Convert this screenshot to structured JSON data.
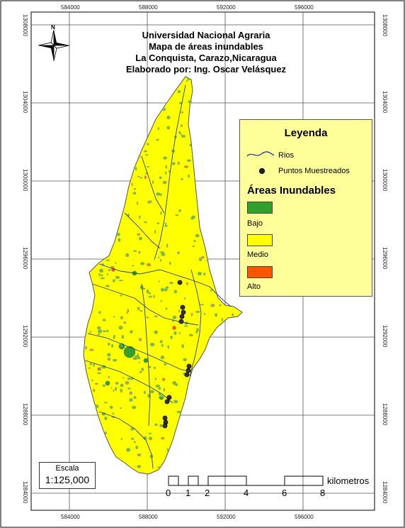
{
  "map": {
    "title_lines": [
      "Universidad Nacional Agraria",
      "Mapa de áreas inundables",
      "La Conquista, Carazo,Nicaragua",
      "Elaborado por: Ing. Oscar Velásquez"
    ],
    "north_label": "N",
    "x_ticks": [
      "584000",
      "588000",
      "592000",
      "596000"
    ],
    "y_ticks": [
      "1308000",
      "1304000",
      "1300000",
      "1296000",
      "1292000",
      "1288000",
      "1284000"
    ],
    "colors": {
      "bajo": "#33a02c",
      "medio": "#ffff00",
      "alto": "#ff5500",
      "rivers": "#1f3f8f",
      "grid": "#555555",
      "legend_bg": "#ffff99"
    },
    "sample_point_count": 13
  },
  "legend": {
    "title": "Leyenda",
    "rivers_label": "Rios",
    "points_label": "Puntos Muestreados",
    "areas_title": "Áreas Inundables",
    "items": [
      {
        "label": "Bajo",
        "color": "#33a02c"
      },
      {
        "label": "Medio",
        "color": "#ffff00"
      },
      {
        "label": "Alto",
        "color": "#ff5500"
      }
    ]
  },
  "scale": {
    "label": "Escala",
    "ratio": "1:125,000",
    "bar_labels": [
      "0",
      "1",
      "2",
      "4",
      "6",
      "8"
    ],
    "unit": "kilometros"
  }
}
